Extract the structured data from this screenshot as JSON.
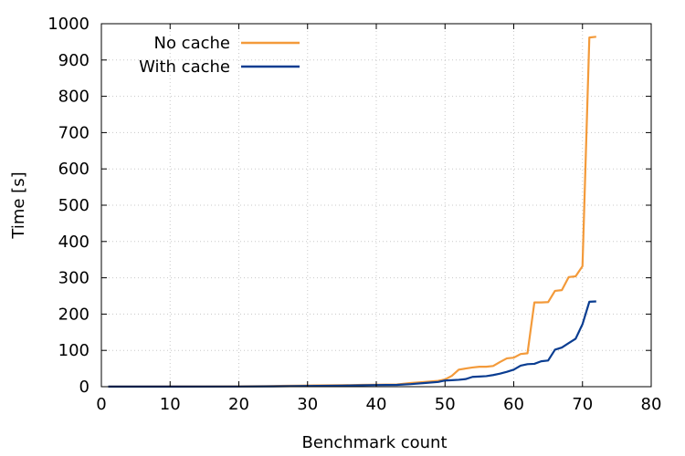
{
  "chart_data": {
    "type": "line",
    "xlabel": "Benchmark count",
    "ylabel": "Time [s]",
    "xlim": [
      0,
      80
    ],
    "ylim": [
      0,
      1000
    ],
    "xticks": [
      "0",
      "10",
      "20",
      "30",
      "40",
      "50",
      "60",
      "70",
      "80"
    ],
    "yticks": [
      "0",
      "100",
      "200",
      "300",
      "400",
      "500",
      "600",
      "700",
      "800",
      "900",
      "1000"
    ],
    "grid": true,
    "legend_position": "top-left",
    "series": [
      {
        "name": "No cache",
        "color": "#f39a3a",
        "points": [
          [
            1,
            0.5
          ],
          [
            5,
            0.5
          ],
          [
            10,
            0.6
          ],
          [
            15,
            0.8
          ],
          [
            20,
            1
          ],
          [
            24,
            1.5
          ],
          [
            27,
            2.5
          ],
          [
            29,
            3
          ],
          [
            31,
            3.5
          ],
          [
            35,
            4
          ],
          [
            38,
            5
          ],
          [
            40,
            5.5
          ],
          [
            43,
            6
          ],
          [
            45,
            10
          ],
          [
            47,
            13
          ],
          [
            49,
            16
          ],
          [
            50,
            20
          ],
          [
            51,
            30
          ],
          [
            52,
            47
          ],
          [
            53,
            50
          ],
          [
            54,
            53
          ],
          [
            55,
            55
          ],
          [
            56,
            55
          ],
          [
            57,
            57
          ],
          [
            58,
            68
          ],
          [
            59,
            78
          ],
          [
            60,
            80
          ],
          [
            61,
            90
          ],
          [
            62,
            92
          ],
          [
            63,
            232
          ],
          [
            64,
            232
          ],
          [
            65,
            233
          ],
          [
            66,
            264
          ],
          [
            67,
            266
          ],
          [
            68,
            302
          ],
          [
            69,
            304
          ],
          [
            70,
            332
          ],
          [
            71,
            962
          ],
          [
            72,
            964
          ]
        ]
      },
      {
        "name": "With cache",
        "color": "#0a3d91",
        "points": [
          [
            1,
            0.3
          ],
          [
            10,
            0.3
          ],
          [
            20,
            0.5
          ],
          [
            25,
            1
          ],
          [
            30,
            2
          ],
          [
            35,
            3
          ],
          [
            40,
            4.5
          ],
          [
            43,
            5
          ],
          [
            45,
            7
          ],
          [
            47,
            10
          ],
          [
            49,
            13
          ],
          [
            50,
            17
          ],
          [
            51,
            18
          ],
          [
            52,
            19
          ],
          [
            53,
            21
          ],
          [
            54,
            27
          ],
          [
            55,
            28
          ],
          [
            56,
            29
          ],
          [
            57,
            32
          ],
          [
            58,
            36
          ],
          [
            59,
            41
          ],
          [
            60,
            47
          ],
          [
            61,
            58
          ],
          [
            62,
            62
          ],
          [
            63,
            63
          ],
          [
            64,
            70
          ],
          [
            65,
            72
          ],
          [
            66,
            102
          ],
          [
            67,
            108
          ],
          [
            68,
            120
          ],
          [
            69,
            132
          ],
          [
            70,
            172
          ],
          [
            71,
            234
          ],
          [
            72,
            235
          ]
        ]
      }
    ]
  }
}
